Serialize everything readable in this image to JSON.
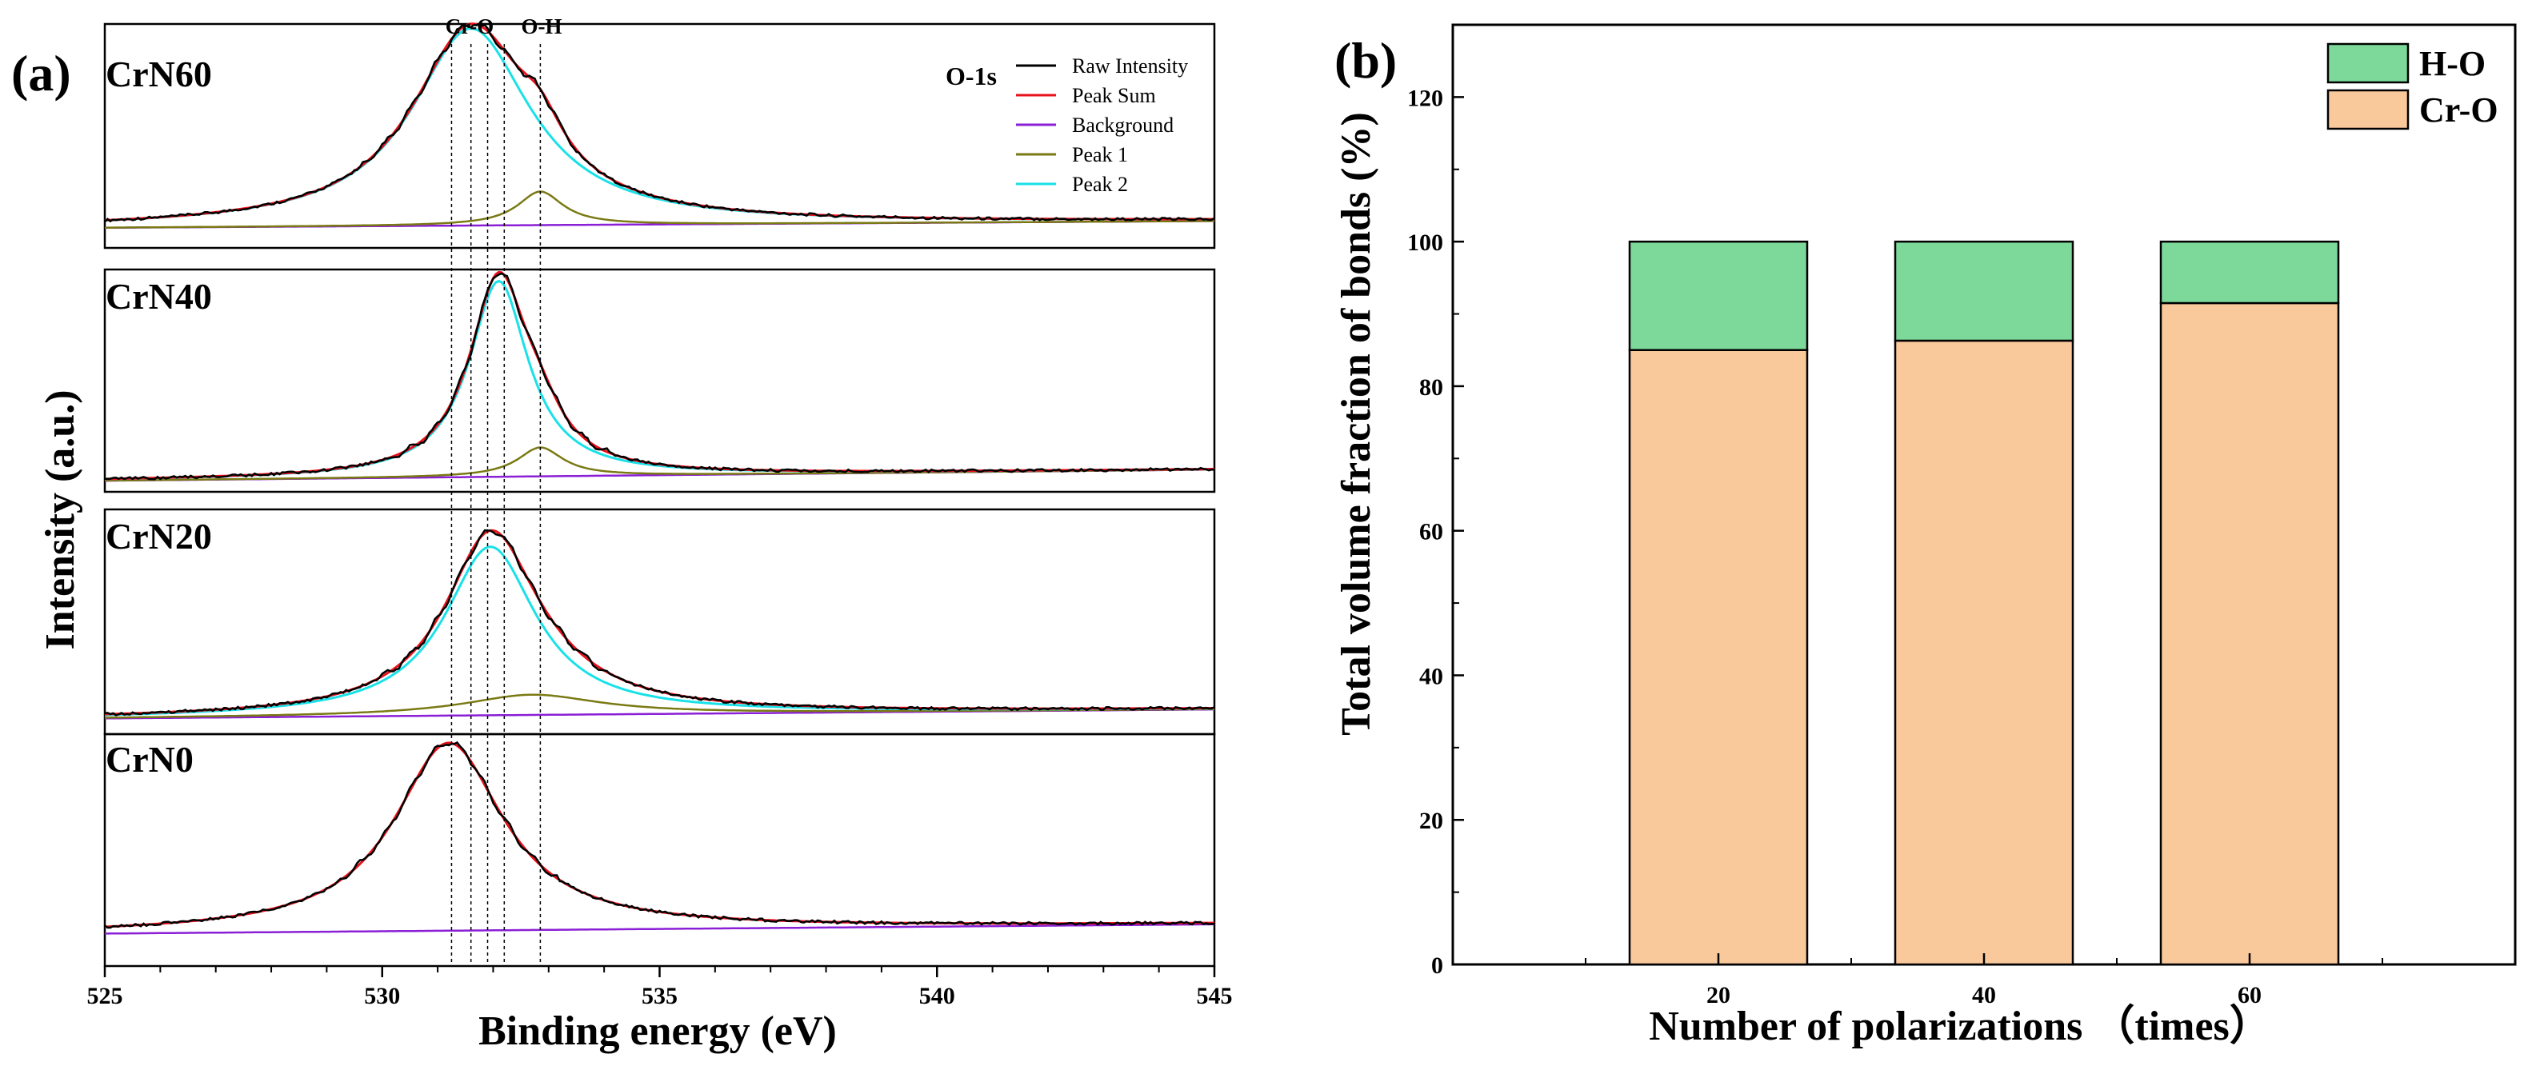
{
  "chart_data": [
    {
      "type": "line",
      "panel_label": "(a)",
      "xlabel": "Binding energy (eV)",
      "ylabel": "Intensity (a.u.)",
      "xlim": [
        525,
        545
      ],
      "xticks": [
        "525",
        "530",
        "535",
        "540",
        "545"
      ],
      "spectrum_label": "O-1s",
      "reference_lines": [
        {
          "label": "Cr-O",
          "x": [
            531.25,
            531.6
          ]
        },
        {
          "label": "O-H",
          "x": [
            532.85
          ]
        }
      ],
      "extra_reference_lines": [
        531.9,
        532.2
      ],
      "legend": [
        "Raw Intensity",
        "Peak Sum",
        "Background",
        "Peak 1",
        "Peak 2"
      ],
      "series_colors": {
        "Raw Intensity": "#000000",
        "Peak Sum": "#e8121b",
        "Background": "#8a1fd6",
        "Peak 1": "#7a7a14",
        "Peak 2": "#19e1e8"
      },
      "subpanels": [
        {
          "name": "CrN60",
          "bg": [
            0.09,
            0.12
          ],
          "main": {
            "center": 531.6,
            "fwhm": 2.6,
            "height": 0.88
          },
          "p1": {
            "center": 532.85,
            "fwhm": 1.0,
            "height": 0.15
          }
        },
        {
          "name": "CrN40",
          "bg": [
            0.05,
            0.1
          ],
          "main": {
            "center": 532.1,
            "fwhm": 1.3,
            "height": 0.88
          },
          "p1": {
            "center": 532.85,
            "fwhm": 1.0,
            "height": 0.13
          }
        },
        {
          "name": "CrN20",
          "bg": [
            0.07,
            0.11
          ],
          "main": {
            "center": 531.95,
            "fwhm": 2.0,
            "height": 0.75
          },
          "p1": {
            "center": 532.7,
            "fwhm": 3.0,
            "height": 0.09
          }
        },
        {
          "name": "CrN0",
          "bg": [
            0.14,
            0.18
          ],
          "main": {
            "center": 531.2,
            "fwhm": 2.4,
            "height": 0.81
          },
          "p1": null
        }
      ]
    },
    {
      "type": "bar",
      "stacked": true,
      "panel_label": "(b)",
      "xlabel": "Number of polarizations （times）",
      "ylabel": "Total volume fraction of bonds (%)",
      "ylim": [
        0,
        130
      ],
      "yticks": [
        "0",
        "20",
        "40",
        "60",
        "80",
        "100",
        "120"
      ],
      "categories": [
        "20",
        "40",
        "60"
      ],
      "series": [
        {
          "name": "Cr-O",
          "color": "#f9c89b",
          "values": [
            85.0,
            86.3,
            91.5
          ]
        },
        {
          "name": "H-O",
          "color": "#7dd99a",
          "values": [
            15.0,
            13.7,
            8.5
          ]
        }
      ],
      "legend_order": [
        "H-O",
        "Cr-O"
      ]
    }
  ]
}
